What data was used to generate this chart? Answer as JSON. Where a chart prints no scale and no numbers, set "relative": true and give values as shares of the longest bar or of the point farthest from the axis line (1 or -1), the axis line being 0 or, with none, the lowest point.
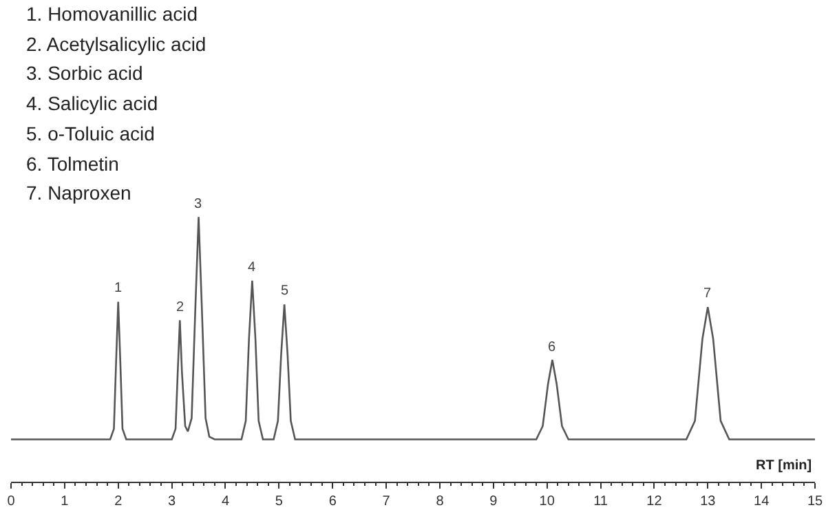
{
  "chart_data": {
    "type": "line",
    "relative": true,
    "xlabel": "RT [min]",
    "xlim": [
      0,
      15
    ],
    "xticks": [
      0,
      1,
      2,
      3,
      4,
      5,
      6,
      7,
      8,
      9,
      10,
      11,
      12,
      13,
      14,
      15
    ],
    "marker": "none",
    "line_style": "solid",
    "series": [
      {
        "color": "#555555",
        "x": [
          0,
          1.85,
          1.92,
          1.96,
          2.0,
          2.04,
          2.08,
          2.15,
          3.0,
          3.07,
          3.11,
          3.15,
          3.19,
          3.25,
          3.3,
          3.37,
          3.44,
          3.5,
          3.56,
          3.63,
          3.7,
          3.8,
          4.3,
          4.38,
          4.44,
          4.5,
          4.56,
          4.62,
          4.7,
          4.9,
          4.98,
          5.04,
          5.1,
          5.16,
          5.22,
          5.3,
          9.8,
          9.92,
          10.02,
          10.1,
          10.18,
          10.28,
          10.4,
          12.6,
          12.76,
          12.9,
          13.0,
          13.1,
          13.24,
          13.4,
          15
        ],
        "values": [
          0.16,
          0.16,
          0.2,
          0.45,
          0.68,
          0.45,
          0.2,
          0.16,
          0.16,
          0.2,
          0.41,
          0.61,
          0.41,
          0.21,
          0.19,
          0.24,
          0.66,
          1.0,
          0.66,
          0.24,
          0.17,
          0.16,
          0.16,
          0.23,
          0.54,
          0.76,
          0.54,
          0.23,
          0.16,
          0.16,
          0.23,
          0.48,
          0.67,
          0.48,
          0.23,
          0.16,
          0.16,
          0.21,
          0.37,
          0.46,
          0.37,
          0.21,
          0.16,
          0.16,
          0.23,
          0.54,
          0.66,
          0.54,
          0.23,
          0.16,
          0.16
        ]
      }
    ],
    "annotations": [
      "1. Homovanillic acid",
      "2. Acetylsalicylic acid",
      "3. Sorbic acid",
      "4. Salicylic acid",
      "5. o-Toluic acid",
      "6. Tolmetin",
      "7. Naproxen",
      {
        "text": "1",
        "x": 2.0,
        "y": 0.68
      },
      {
        "text": "2",
        "x": 3.15,
        "y": 0.61
      },
      {
        "text": "3",
        "x": 3.5,
        "y": 1.0
      },
      {
        "text": "4",
        "x": 4.5,
        "y": 0.76
      },
      {
        "text": "5",
        "x": 5.1,
        "y": 0.67
      },
      {
        "text": "6",
        "x": 10.1,
        "y": 0.46
      },
      {
        "text": "7",
        "x": 13.0,
        "y": 0.66
      }
    ]
  }
}
